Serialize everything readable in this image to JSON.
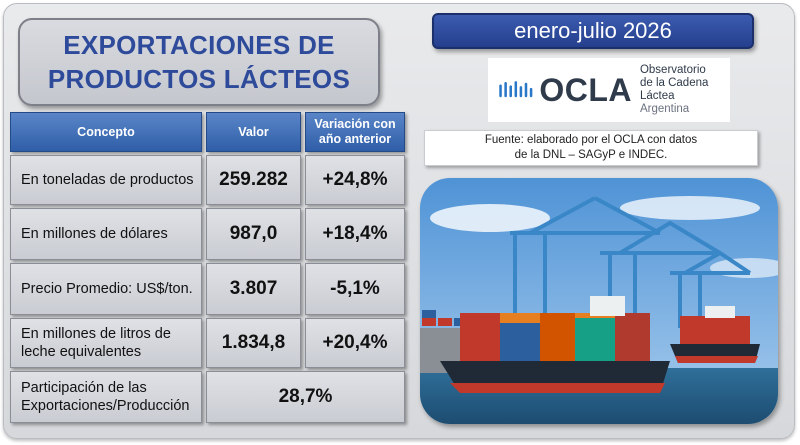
{
  "title": {
    "line1": "EXPORTACIONES DE",
    "line2": "PRODUCTOS LÁCTEOS"
  },
  "period": "enero-julio 2026",
  "logo": {
    "name": "OCLA",
    "line1": "Observatorio",
    "line2": "de la Cadena Láctea",
    "line3": "Argentina"
  },
  "source": {
    "line1": "Fuente: elaborado por el OCLA con datos",
    "line2": "de la DNL – SAGyP e INDEC."
  },
  "table": {
    "headers": {
      "concept": "Concepto",
      "value": "Valor",
      "variation": "Variación con año anterior"
    },
    "rows": [
      {
        "concept": "En toneladas de productos",
        "value": "259.282",
        "variation": "+24,8%"
      },
      {
        "concept": "En millones de dólares",
        "value": "987,0",
        "variation": "+18,4%"
      },
      {
        "concept": "Precio Promedio: US$/ton.",
        "value": "3.807",
        "variation": "-5,1%"
      },
      {
        "concept": "En millones de litros de leche equivalentes",
        "value": "1.834,8",
        "variation": "+20,4%"
      }
    ],
    "share": {
      "concept": "Participación de las Exportaciones/Producción",
      "value": "28,7%"
    }
  },
  "colors": {
    "title_text": "#2e4a9a",
    "header_blue": "#2f5ea8",
    "date_blue": "#243f8c",
    "logo_wave": "#2a78c8"
  },
  "icons": {
    "logo_mark": "milk-wave-icon",
    "photo": "container-ship-port-photo"
  }
}
